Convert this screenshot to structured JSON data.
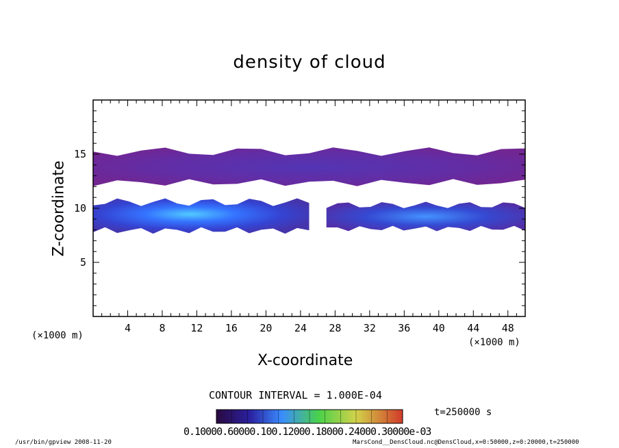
{
  "chart_data": {
    "type": "heatmap",
    "title": "density of cloud",
    "xlabel": "X-coordinate",
    "ylabel": "Z-coordinate",
    "x_unit": "(×1000 m)",
    "xlim": [
      0,
      50
    ],
    "ylim": [
      0,
      20
    ],
    "x_ticks": [
      4,
      8,
      12,
      16,
      20,
      24,
      28,
      32,
      36,
      40,
      44,
      48
    ],
    "y_ticks": [
      5,
      10,
      15
    ],
    "contour_interval": "CONTOUR INTERVAL = 1.000E-04",
    "time_label": "t=250000 s",
    "colorbar_labels": "0.10000.60000.100.12000.18000.24000.30000e-03",
    "colorbar_range": [
      0.0001,
      0.0013
    ],
    "cloud_regions": [
      {
        "name": "upper cloud layer",
        "x_range": [
          0,
          50
        ],
        "z_range": [
          12.2,
          15.5
        ],
        "peak_density": 0.0003
      },
      {
        "name": "lower cloud layer west",
        "x_range": [
          0,
          25
        ],
        "z_range": [
          7.8,
          10.8
        ],
        "peak_density": 0.0012
      },
      {
        "name": "lower cloud layer east",
        "x_range": [
          27,
          50
        ],
        "z_range": [
          8.0,
          10.5
        ],
        "peak_density": 0.0008
      }
    ]
  },
  "labels": {
    "title": "density of cloud",
    "xlabel": "X-coordinate",
    "ylabel": "Z-coordinate",
    "xunit_left": "(×1000 m)",
    "xunit_right": "(×1000 m)",
    "contour_interval": "CONTOUR INTERVAL = 1.000E-04",
    "time": "t=250000 s",
    "colorbar_labels": "0.10000.60000.100.12000.18000.24000.30000e-03",
    "footer_left": "/usr/bin/gpview  2008-11-20",
    "footer_right": "MarsCond__DensCloud.nc@DensCloud,x=0:50000,z=0:20000,t=250000"
  },
  "colors": {
    "low": "#6a1a8c",
    "mid_low": "#3b2aa8",
    "mid": "#2a6cff",
    "high": "#48c8ff",
    "peak": "#4ad24a"
  }
}
